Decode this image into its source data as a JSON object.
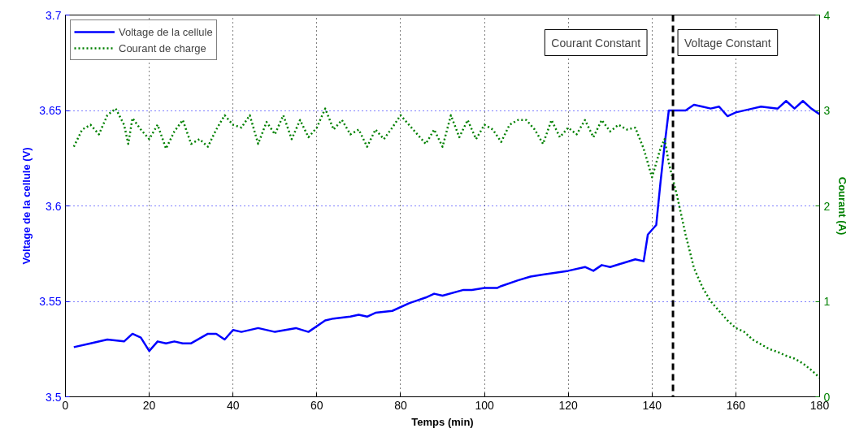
{
  "chart_data": {
    "type": "line",
    "xlabel": "Temps (min)",
    "ylabel": "Voltage de la cellule (V)",
    "y2label": "Courant (A)",
    "xlim": [
      0,
      180
    ],
    "xticks": [
      0,
      20,
      40,
      60,
      80,
      100,
      120,
      140,
      160,
      180
    ],
    "ylim": [
      3.5,
      3.7
    ],
    "yticks": [
      3.5,
      3.55,
      3.6,
      3.65,
      3.7
    ],
    "y2lim": [
      0,
      4
    ],
    "y2ticks": [
      0,
      1,
      2,
      3,
      4
    ],
    "grid": true,
    "legend": "top left",
    "series": [
      {
        "name": "Voltage de la cellule",
        "color": "#0000ff",
        "line_style": "solid",
        "x": [
          2,
          6,
          10,
          14,
          16,
          18,
          20,
          22,
          24,
          26,
          28,
          30,
          34,
          36,
          38,
          40,
          42,
          46,
          50,
          55,
          58,
          62,
          64,
          68,
          70,
          72,
          74,
          78,
          82,
          86,
          88,
          90,
          95,
          97,
          100,
          103,
          104,
          108,
          111,
          114,
          120,
          124,
          126,
          128,
          130,
          133,
          136,
          138,
          139,
          141,
          142,
          143,
          144,
          148,
          150,
          152,
          154,
          156,
          158,
          160,
          164,
          166,
          170,
          172,
          174,
          176,
          178,
          180
        ],
        "values": [
          3.526,
          3.528,
          3.53,
          3.529,
          3.533,
          3.531,
          3.524,
          3.529,
          3.528,
          3.529,
          3.528,
          3.528,
          3.533,
          3.533,
          3.53,
          3.535,
          3.534,
          3.536,
          3.534,
          3.536,
          3.534,
          3.54,
          3.541,
          3.542,
          3.543,
          3.542,
          3.544,
          3.545,
          3.549,
          3.552,
          3.554,
          3.553,
          3.556,
          3.556,
          3.557,
          3.557,
          3.558,
          3.561,
          3.563,
          3.564,
          3.566,
          3.568,
          3.566,
          3.569,
          3.568,
          3.57,
          3.572,
          3.571,
          3.585,
          3.59,
          3.612,
          3.632,
          3.65,
          3.65,
          3.653,
          3.652,
          3.651,
          3.652,
          3.647,
          3.649,
          3.651,
          3.652,
          3.651,
          3.655,
          3.651,
          3.655,
          3.651,
          3.648
        ]
      },
      {
        "name": "Courant de charge",
        "color": "#008000",
        "line_style": "dotted",
        "axis": "y2",
        "x": [
          2,
          4,
          6,
          8,
          10,
          12,
          14,
          15,
          16,
          18,
          20,
          22,
          24,
          26,
          28,
          30,
          32,
          34,
          36,
          38,
          40,
          42,
          44,
          46,
          48,
          50,
          52,
          54,
          56,
          58,
          60,
          62,
          64,
          66,
          68,
          70,
          72,
          74,
          76,
          78,
          80,
          82,
          84,
          86,
          88,
          90,
          92,
          94,
          96,
          98,
          100,
          102,
          104,
          106,
          108,
          110,
          112,
          114,
          116,
          118,
          120,
          122,
          124,
          126,
          128,
          130,
          132,
          134,
          136,
          138,
          140,
          142,
          143,
          144,
          146,
          148,
          150,
          152,
          154,
          156,
          158,
          160,
          162,
          164,
          166,
          168,
          170,
          172,
          174,
          176,
          178,
          180
        ],
        "values": [
          2.62,
          2.8,
          2.85,
          2.75,
          2.95,
          3.02,
          2.85,
          2.65,
          2.92,
          2.8,
          2.7,
          2.85,
          2.6,
          2.78,
          2.9,
          2.65,
          2.7,
          2.62,
          2.8,
          2.95,
          2.85,
          2.82,
          2.95,
          2.65,
          2.88,
          2.75,
          2.95,
          2.7,
          2.9,
          2.72,
          2.82,
          3.02,
          2.8,
          2.9,
          2.75,
          2.8,
          2.62,
          2.8,
          2.7,
          2.82,
          2.95,
          2.85,
          2.75,
          2.65,
          2.8,
          2.62,
          2.95,
          2.72,
          2.9,
          2.7,
          2.85,
          2.8,
          2.67,
          2.85,
          2.9,
          2.9,
          2.8,
          2.65,
          2.9,
          2.72,
          2.82,
          2.75,
          2.9,
          2.72,
          2.9,
          2.78,
          2.85,
          2.8,
          2.82,
          2.6,
          2.3,
          2.6,
          2.7,
          2.45,
          2.1,
          1.7,
          1.35,
          1.15,
          1.0,
          0.9,
          0.8,
          0.72,
          0.68,
          0.6,
          0.55,
          0.5,
          0.47,
          0.43,
          0.4,
          0.35,
          0.28,
          0.2
        ]
      }
    ],
    "ref_lines": [
      {
        "axis": "x",
        "value": 145,
        "color": "#000000",
        "line_style": "dashed"
      }
    ],
    "annotations": [
      "Courant Constant",
      "Voltage Constant"
    ]
  }
}
